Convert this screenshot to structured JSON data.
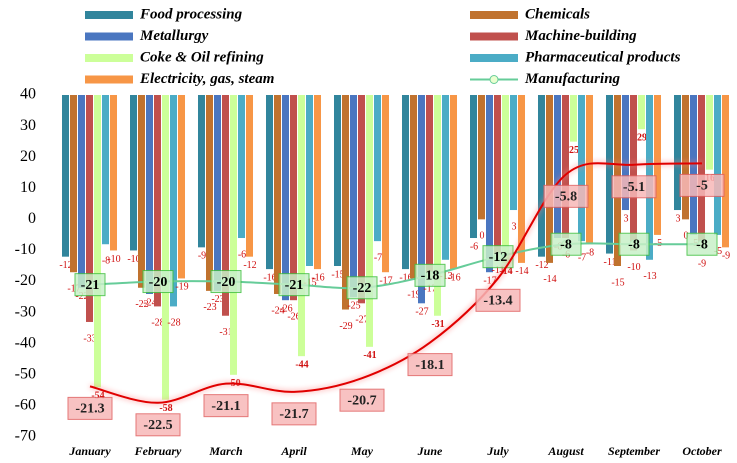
{
  "chart_data": {
    "type": "bar",
    "categories": [
      "January",
      "February",
      "March",
      "April",
      "May",
      "June",
      "July",
      "August",
      "September",
      "October"
    ],
    "ylim": [
      -70,
      40
    ],
    "yticks": [
      -70,
      -60,
      -50,
      -40,
      -30,
      -20,
      -10,
      0,
      10,
      20,
      30,
      40
    ],
    "y2lim": [
      -25,
      0
    ],
    "grid": false,
    "bar_base": 40,
    "series": [
      {
        "name": "Food processing",
        "color": "#31859c",
        "values": [
          -12,
          -10,
          -9,
          -16,
          -15,
          -16,
          -6,
          -12,
          -11,
          3
        ]
      },
      {
        "name": "Chemicals",
        "color": "#c0722e",
        "values": [
          -17,
          -22,
          -23,
          -24,
          -29,
          -19,
          0,
          -14,
          -15,
          0
        ]
      },
      {
        "name": "Metallurgy",
        "color": "#4a76c0",
        "values": [
          -22,
          -24,
          -23,
          -26,
          -25,
          -27,
          -17,
          -6,
          3,
          -5
        ]
      },
      {
        "name": "Machine-building",
        "color": "#c0504d",
        "values": [
          -33,
          -28,
          -31,
          -26,
          -27,
          -17,
          -11,
          -6,
          -10,
          -9
        ]
      },
      {
        "name": "Coke & Oil refining",
        "color": "#ccff99",
        "values": [
          -54,
          -58,
          -50,
          -44,
          -41,
          -31,
          -14,
          25,
          29,
          16
        ]
      },
      {
        "name": "Pharmaceutical products",
        "color": "#4bacc6",
        "values": [
          -8,
          -28,
          -6,
          -15,
          -7,
          -13,
          3,
          -7,
          -13,
          -5
        ]
      },
      {
        "name": "Electricity, gas, steam",
        "color": "#f79646",
        "values": [
          -10,
          -19,
          -12,
          -16,
          -17,
          -16,
          -14,
          -8,
          -5,
          -9
        ]
      },
      {
        "name": "Manufacturing",
        "color": "#66cc99",
        "type": "line",
        "values": [
          -21,
          -20,
          -20,
          -21,
          -22,
          -18,
          -12,
          -8,
          -8,
          -8
        ]
      },
      {
        "color": "#e00000",
        "type": "line",
        "axis": "y2",
        "values": [
          -21.3,
          -22.5,
          -21.1,
          -21.7,
          -20.7,
          -18.1,
          -13.4,
          -5.8,
          -5.1,
          -5
        ]
      }
    ]
  }
}
